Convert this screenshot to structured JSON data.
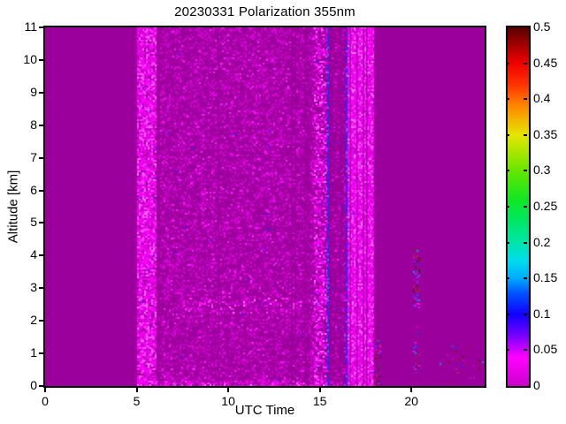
{
  "chart_data": {
    "type": "heatmap",
    "title": "20230331 Polarization 355nm",
    "xlabel": "UTC Time",
    "ylabel": "Altitude [km]",
    "xlim": [
      0,
      24
    ],
    "ylim": [
      0,
      11
    ],
    "xticks": [
      {
        "v": 0,
        "label": "0"
      },
      {
        "v": 5,
        "label": "5"
      },
      {
        "v": 10,
        "label": "10"
      },
      {
        "v": 15,
        "label": "15"
      },
      {
        "v": 20,
        "label": "20"
      }
    ],
    "yticks": [
      {
        "v": 0,
        "label": "0"
      },
      {
        "v": 1,
        "label": "1"
      },
      {
        "v": 2,
        "label": "2"
      },
      {
        "v": 3,
        "label": "3"
      },
      {
        "v": 4,
        "label": "4"
      },
      {
        "v": 5,
        "label": "5"
      },
      {
        "v": 6,
        "label": "6"
      },
      {
        "v": 7,
        "label": "7"
      },
      {
        "v": 8,
        "label": "8"
      },
      {
        "v": 9,
        "label": "9"
      },
      {
        "v": 10,
        "label": "10"
      },
      {
        "v": 11,
        "label": "11"
      }
    ],
    "colorbar": {
      "min": 0,
      "max": 0.5,
      "ticks": [
        {
          "v": 0,
          "label": "0"
        },
        {
          "v": 0.05,
          "label": "0.05"
        },
        {
          "v": 0.1,
          "label": "0.1"
        },
        {
          "v": 0.15,
          "label": "0.15"
        },
        {
          "v": 0.2,
          "label": "0.2"
        },
        {
          "v": 0.25,
          "label": "0.25"
        },
        {
          "v": 0.3,
          "label": "0.3"
        },
        {
          "v": 0.35,
          "label": "0.35"
        },
        {
          "v": 0.4,
          "label": "0.4"
        },
        {
          "v": 0.45,
          "label": "0.45"
        },
        {
          "v": 0.5,
          "label": "0.5"
        }
      ],
      "colormap": [
        {
          "v": 0.0,
          "color": "#cc00cc"
        },
        {
          "v": 0.04,
          "color": "#ff00ff"
        },
        {
          "v": 0.07,
          "color": "#7700ff"
        },
        {
          "v": 0.1,
          "color": "#1100ff"
        },
        {
          "v": 0.13,
          "color": "#0055ff"
        },
        {
          "v": 0.15,
          "color": "#00aaff"
        },
        {
          "v": 0.175,
          "color": "#00ddee"
        },
        {
          "v": 0.2,
          "color": "#00e6aa"
        },
        {
          "v": 0.23,
          "color": "#00e666"
        },
        {
          "v": 0.26,
          "color": "#11e622"
        },
        {
          "v": 0.3,
          "color": "#66e600"
        },
        {
          "v": 0.35,
          "color": "#e6e600"
        },
        {
          "v": 0.39,
          "color": "#ff8800"
        },
        {
          "v": 0.42,
          "color": "#ff3300"
        },
        {
          "v": 0.45,
          "color": "#ee0000"
        },
        {
          "v": 0.5,
          "color": "#5a0000"
        }
      ]
    },
    "colors": {
      "background": "#9c009c",
      "dark_line": "#930093",
      "blue_dot": "#2233ee"
    },
    "palettes": {
      "dim": {
        "colors": [
          "#ad00ad",
          "#bb00bb",
          "#cc00cc",
          "#e000e0",
          "#f200f2",
          "#ff22ff"
        ],
        "weights": [
          28,
          24,
          20,
          14,
          9,
          5
        ]
      },
      "bright": {
        "colors": [
          "#cc00cc",
          "#e000e0",
          "#f000f0",
          "#ff00ff",
          "#ff44ff",
          "#ff77ff"
        ],
        "weights": [
          10,
          15,
          20,
          30,
          17,
          8
        ]
      },
      "colorful": {
        "colors": [
          "#6e1111",
          "#8b2020",
          "#a03333",
          "#2233dd",
          "#4444ff",
          "#7700cc",
          "#cc00cc",
          "#ff00ff",
          "#0099dd"
        ],
        "weights": [
          18,
          12,
          8,
          12,
          8,
          10,
          14,
          12,
          6
        ]
      }
    },
    "noise_regions": [
      {
        "name": "turn-on-band",
        "t": [
          5.03,
          6.06
        ],
        "alt": [
          0,
          11
        ],
        "density": 0.85,
        "palette": "bright",
        "blue_prob": 0.004
      },
      {
        "name": "gap-after-turn-on",
        "t": [
          6.06,
          6.32
        ],
        "alt": [
          0,
          11
        ],
        "density": 0.15,
        "palette": "dim"
      },
      {
        "name": "main-noise",
        "t": [
          6.32,
          14.68
        ],
        "alt": [
          0,
          11
        ],
        "density": 0.42,
        "palette": "dim",
        "blue_prob": 0.0012
      },
      {
        "name": "aerosol-band-2km",
        "t": [
          7.5,
          15.4
        ],
        "alt": [
          2.2,
          2.7
        ],
        "density": 0.15,
        "palette": "bright"
      },
      {
        "name": "pre-stripe-bright",
        "t": [
          14.68,
          15.43
        ],
        "alt": [
          0,
          11
        ],
        "density": 0.55,
        "palette": "bright",
        "blue_prob": 0.002
      },
      {
        "name": "dark-band",
        "t": [
          15.52,
          16.42
        ],
        "alt": [
          0,
          11
        ],
        "density": 0.28,
        "palette": "dim",
        "blue_prob": 0.004
      },
      {
        "name": "stripe-region",
        "t": [
          16.5,
          17.92
        ],
        "alt": [
          0,
          11
        ],
        "density": 0.8,
        "palette": "bright",
        "blue_prob": 0.012
      },
      {
        "name": "stripe-bottom",
        "t": [
          16.5,
          17.92
        ],
        "alt": [
          0,
          0.5
        ],
        "density": 0.12,
        "palette": "colorful"
      },
      {
        "name": "surface-layer",
        "t": [
          5.03,
          17.92
        ],
        "alt": [
          0,
          0.18
        ],
        "density": 0.5,
        "palette": "bright"
      },
      {
        "name": "post-column-low",
        "t": [
          17.95,
          18.35
        ],
        "alt": [
          0,
          1.4
        ],
        "density": 0.3,
        "palette": "colorful"
      },
      {
        "name": "evening-feat-high",
        "t": [
          20.1,
          20.5
        ],
        "alt": [
          2.4,
          4.2
        ],
        "density": 0.38,
        "palette": "colorful"
      },
      {
        "name": "evening-feat-low",
        "t": [
          20.12,
          20.45
        ],
        "alt": [
          0.3,
          1.8
        ],
        "density": 0.18,
        "palette": "colorful"
      },
      {
        "name": "evening-feat-mid",
        "t": [
          20.15,
          20.4
        ],
        "alt": [
          1.8,
          2.4
        ],
        "density": 0.07,
        "palette": "colorful"
      },
      {
        "name": "late-dust",
        "t": [
          21.8,
          23.98
        ],
        "alt": [
          0,
          1.3
        ],
        "density": 0.035,
        "palette": "colorful"
      },
      {
        "name": "sparse-dust",
        "t": [
          18.4,
          21.8
        ],
        "alt": [
          0,
          0.7
        ],
        "density": 0.015,
        "palette": "colorful"
      }
    ],
    "dark_lines": [
      {
        "t": 6.18,
        "w": 0.07,
        "alpha": 0.8,
        "alt": [
          0,
          11
        ]
      },
      {
        "t": 9.47,
        "w": 0.1,
        "alpha": 0.8,
        "alt": [
          0,
          11
        ]
      },
      {
        "t": 13.48,
        "w": 0.09,
        "alpha": 0.8,
        "alt": [
          0,
          11
        ]
      },
      {
        "t": 13.66,
        "w": 0.06,
        "alpha": 0.7,
        "alt": [
          0,
          11
        ]
      },
      {
        "t": 14.3,
        "w": 0.3,
        "alpha": 0.45,
        "alt": [
          0,
          11
        ]
      },
      {
        "t": 15.6,
        "w": 0.15,
        "alpha": 0.5,
        "alt": [
          0,
          11
        ]
      },
      {
        "t": 16.15,
        "w": 0.2,
        "alpha": 0.45,
        "alt": [
          0,
          11
        ]
      },
      {
        "t": 18.16,
        "w": 0.07,
        "alpha": 0.8,
        "alt": [
          0,
          2.6
        ]
      }
    ],
    "blue_lines": [
      {
        "t": 15.47,
        "w": 0.07
      },
      {
        "t": 16.46,
        "w": 0.07
      }
    ],
    "bright_stripes": [
      [
        16.55,
        16.64
      ],
      [
        16.7,
        16.81
      ],
      [
        16.88,
        17.0
      ],
      [
        17.06,
        17.17
      ],
      [
        17.24,
        17.35
      ],
      [
        17.42,
        17.53
      ],
      [
        17.6,
        17.79
      ],
      [
        17.83,
        17.9
      ]
    ],
    "dark_stripes": [
      [
        16.64,
        16.68
      ],
      [
        17.0,
        17.04
      ],
      [
        17.35,
        17.4
      ],
      [
        17.53,
        17.58
      ]
    ]
  }
}
